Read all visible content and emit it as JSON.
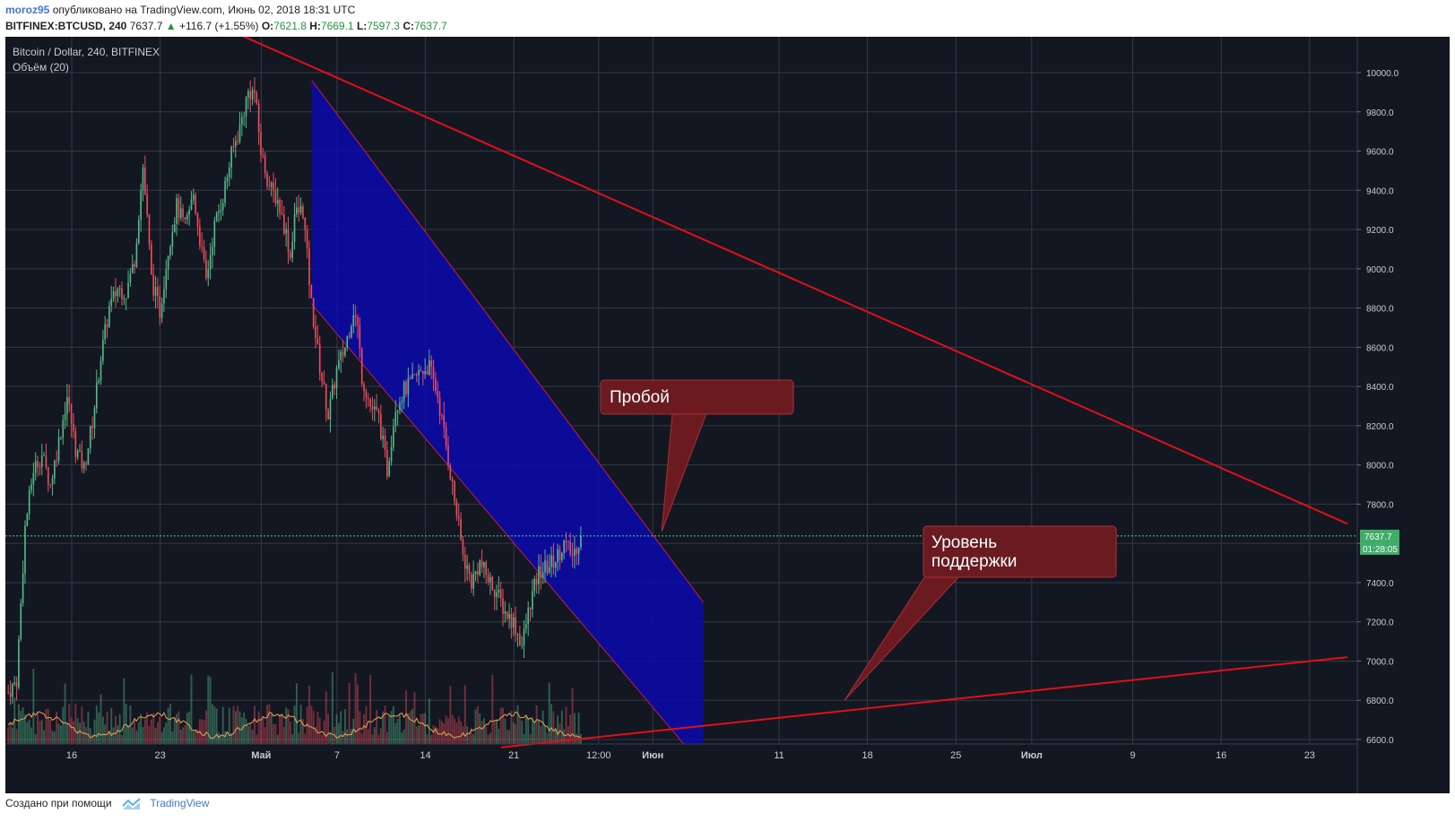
{
  "header": {
    "user": "moroz95",
    "published_text": "опубликовано на TradingView.com, Июнь 02, 2018 18:31 UTC",
    "symbol": "BITFINEX:BTCUSD, 240",
    "last": "7637.7",
    "up_arrow": "▲",
    "change": "+116.7 (+1.55%)",
    "o_label": "O:",
    "o_value": "7621.8",
    "h_label": "H:",
    "h_value": "7669.1",
    "l_label": "L:",
    "l_value": "7597.3",
    "c_label": "C:",
    "c_value": "7637.7"
  },
  "chart": {
    "instrument_label": "Bitcoin / Dollar, 240, BITFINEX",
    "volume_label": "Объём (20)",
    "price_tag": "7637.7",
    "countdown_tag": "01:28:05",
    "colors": {
      "background": "#131722",
      "grid": "#363a45",
      "up_candle": "#53b987",
      "down_candle": "#eb4d5c",
      "channel_fill": "#0a0aa8",
      "trendline": "#e0101a",
      "callout_fill": "#6b1a1f",
      "price_line": "#5fd18a"
    }
  },
  "chart_data": {
    "type": "candlestick",
    "title": "Bitcoin / Dollar, 240, BITFINEX",
    "ylim": [
      6560,
      10200
    ],
    "y_ticks": [
      "10000.0",
      "9800.0",
      "9600.0",
      "9400.0",
      "9200.0",
      "9000.0",
      "8800.0",
      "8600.0",
      "8400.0",
      "8200.0",
      "8000.0",
      "7800.0",
      "7600.0",
      "7400.0",
      "7200.0",
      "7000.0",
      "6800.0",
      "6600.0"
    ],
    "x_tick_labels": [
      "16",
      "23",
      "Май",
      "7",
      "14",
      "21",
      "12:00",
      "Июн",
      "11",
      "18",
      "25",
      "Июл",
      "9",
      "16",
      "23"
    ],
    "last_price": 7637.7,
    "price_path": [
      [
        0,
        6840
      ],
      [
        4,
        6900
      ],
      [
        8,
        7680
      ],
      [
        12,
        7980
      ],
      [
        16,
        8050
      ],
      [
        20,
        7900
      ],
      [
        24,
        8120
      ],
      [
        28,
        8350
      ],
      [
        32,
        8080
      ],
      [
        36,
        7980
      ],
      [
        40,
        8220
      ],
      [
        44,
        8550
      ],
      [
        48,
        8800
      ],
      [
        52,
        8900
      ],
      [
        56,
        8880
      ],
      [
        60,
        9050
      ],
      [
        64,
        9520
      ],
      [
        66,
        9250
      ],
      [
        68,
        8950
      ],
      [
        72,
        8780
      ],
      [
        76,
        9100
      ],
      [
        80,
        9320
      ],
      [
        84,
        9210
      ],
      [
        88,
        9380
      ],
      [
        92,
        9080
      ],
      [
        94,
        8940
      ],
      [
        98,
        9220
      ],
      [
        102,
        9370
      ],
      [
        106,
        9580
      ],
      [
        110,
        9720
      ],
      [
        114,
        9900
      ],
      [
        117,
        9900
      ],
      [
        120,
        9600
      ],
      [
        124,
        9420
      ],
      [
        128,
        9350
      ],
      [
        132,
        9180
      ],
      [
        134,
        9060
      ],
      [
        136,
        9280
      ],
      [
        140,
        9300
      ],
      [
        144,
        8820
      ],
      [
        148,
        8500
      ],
      [
        152,
        8250
      ],
      [
        156,
        8480
      ],
      [
        160,
        8600
      ],
      [
        164,
        8790
      ],
      [
        166,
        8700
      ],
      [
        168,
        8450
      ],
      [
        172,
        8300
      ],
      [
        176,
        8240
      ],
      [
        180,
        7970
      ],
      [
        184,
        8300
      ],
      [
        188,
        8380
      ],
      [
        192,
        8420
      ],
      [
        196,
        8480
      ],
      [
        200,
        8500
      ],
      [
        204,
        8350
      ],
      [
        208,
        8100
      ],
      [
        212,
        7820
      ],
      [
        216,
        7540
      ],
      [
        220,
        7400
      ],
      [
        224,
        7500
      ],
      [
        228,
        7420
      ],
      [
        232,
        7350
      ],
      [
        236,
        7250
      ],
      [
        240,
        7200
      ],
      [
        244,
        7080
      ],
      [
        248,
        7300
      ],
      [
        252,
        7450
      ],
      [
        256,
        7480
      ],
      [
        260,
        7520
      ],
      [
        264,
        7600
      ],
      [
        268,
        7538
      ],
      [
        272,
        7638
      ]
    ],
    "volume_avg_level": 0.28,
    "channel": {
      "upper": [
        [
          "2018-05-05",
          9960
        ],
        [
          "2018-06-05",
          7300
        ]
      ],
      "lower": [
        [
          "2018-05-05",
          8820
        ],
        [
          "2018-06-05",
          6460
        ]
      ]
    },
    "trendlines": [
      {
        "from": [
          "2018-04-28",
          10230
        ],
        "to": [
          "2018-07-26",
          7700
        ]
      },
      {
        "from": [
          "2018-05-20",
          6560
        ],
        "to": [
          "2018-07-26",
          7020
        ]
      }
    ],
    "annotations": [
      {
        "text": "Пробой",
        "pointer_price": 7660
      },
      {
        "text_line1": "Уровень",
        "text_line2": "поддержки",
        "pointer_price": 6800
      }
    ]
  },
  "footer": {
    "created_with": "Создано при помощи",
    "brand": "TradingView"
  }
}
